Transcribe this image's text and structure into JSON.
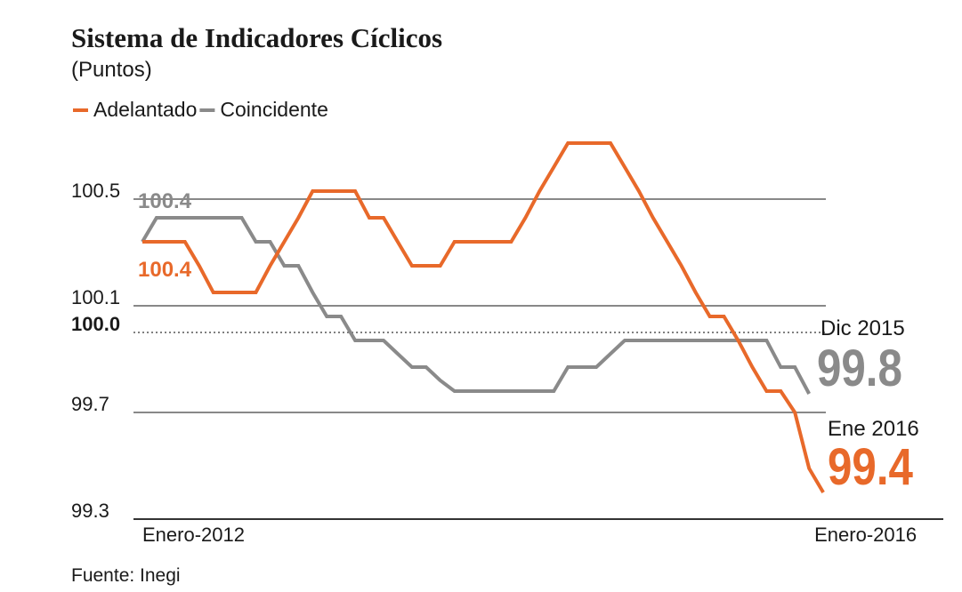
{
  "chart_data": {
    "type": "line",
    "title": "Sistema de Indicadores Cíclicos",
    "subtitle": "(Puntos)",
    "source": "Fuente: Inegi",
    "categories": [
      "Enero-2012",
      null,
      null,
      null,
      null,
      null,
      null,
      null,
      null,
      null,
      null,
      null,
      null,
      null,
      null,
      null,
      null,
      null,
      null,
      null,
      null,
      null,
      null,
      null,
      null,
      null,
      null,
      null,
      null,
      null,
      null,
      null,
      null,
      null,
      null,
      null,
      null,
      null,
      null,
      null,
      null,
      null,
      null,
      null,
      null,
      null,
      null,
      null,
      "Enero-2016"
    ],
    "series": [
      {
        "name": "Adelantado",
        "color": "#e8692a",
        "values": [
          100.34,
          100.34,
          100.34,
          100.34,
          100.25,
          100.15,
          100.15,
          100.15,
          100.15,
          100.25,
          100.34,
          100.43,
          100.53,
          100.53,
          100.53,
          100.53,
          100.43,
          100.43,
          100.34,
          100.25,
          100.25,
          100.25,
          100.34,
          100.34,
          100.34,
          100.34,
          100.34,
          100.43,
          100.53,
          100.62,
          100.71,
          100.71,
          100.71,
          100.71,
          100.62,
          100.53,
          100.43,
          100.34,
          100.25,
          100.15,
          100.06,
          100.06,
          99.97,
          99.87,
          99.78,
          99.78,
          99.7,
          99.49,
          99.4
        ]
      },
      {
        "name": "Coincidente",
        "color": "#8a8a8a",
        "values": [
          100.34,
          100.43,
          100.43,
          100.43,
          100.43,
          100.43,
          100.43,
          100.43,
          100.34,
          100.34,
          100.25,
          100.25,
          100.15,
          100.06,
          100.06,
          99.97,
          99.97,
          99.97,
          99.92,
          99.87,
          99.87,
          99.82,
          99.78,
          99.78,
          99.78,
          99.78,
          99.78,
          99.78,
          99.78,
          99.78,
          99.87,
          99.87,
          99.87,
          99.92,
          99.97,
          99.97,
          99.97,
          99.97,
          99.97,
          99.97,
          99.97,
          99.97,
          99.97,
          99.97,
          99.97,
          99.87,
          99.87,
          99.77,
          null
        ]
      }
    ],
    "ylim": [
      99.3,
      100.8
    ],
    "yticks": [
      {
        "value": 100.5,
        "label": "100.5"
      },
      {
        "value": 100.1,
        "label": "100.1"
      },
      {
        "value": 100,
        "label": "100.0"
      },
      {
        "value": 99.7,
        "label": "99.7"
      },
      {
        "value": 99.3,
        "label": "99.3"
      }
    ],
    "reference_line": 100,
    "grid": true,
    "annotations": [
      {
        "text": "100.4",
        "series": 1
      },
      {
        "text": "100.4",
        "series": 0
      },
      {
        "text": "Dic 2015",
        "series": 1
      },
      {
        "text": "99.8",
        "series": 1
      },
      {
        "text": "Ene 2016",
        "series": 0
      },
      {
        "text": "99.4",
        "series": 0
      }
    ]
  }
}
